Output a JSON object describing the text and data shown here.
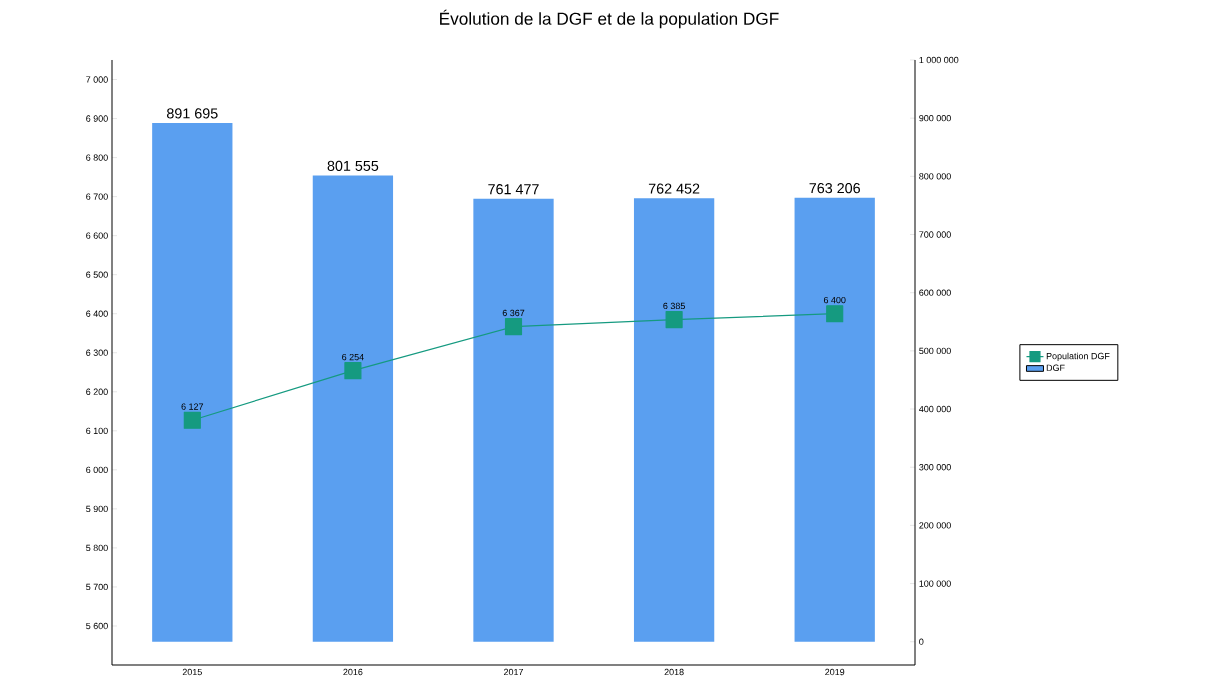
{
  "chart_data": {
    "type": "bar",
    "title": "Évolution de la DGF et de la population DGF",
    "categories": [
      "2015",
      "2016",
      "2017",
      "2018",
      "2019"
    ],
    "series": [
      {
        "name": "Population DGF",
        "type": "line",
        "axis": "y",
        "color": "#159a80",
        "values": [
          6127,
          6254,
          6367,
          6385,
          6400
        ],
        "value_labels": [
          "6 127",
          "6 254",
          "6 367",
          "6 385",
          "6 400"
        ]
      },
      {
        "name": "DGF",
        "axis": "y2",
        "color": "#5a9ff0",
        "values": [
          891695,
          801555,
          761477,
          762452,
          763206
        ],
        "value_labels": [
          "891 695",
          "801 555",
          "761 477",
          "762 452",
          "763 206"
        ]
      }
    ],
    "ylim": [
      5500,
      7050
    ],
    "yticks": [
      {
        "value": 5600,
        "label": "5 600"
      },
      {
        "value": 5700,
        "label": "5 700"
      },
      {
        "value": 5800,
        "label": "5 800"
      },
      {
        "value": 5900,
        "label": "5 900"
      },
      {
        "value": 6000,
        "label": "6 000"
      },
      {
        "value": 6100,
        "label": "6 100"
      },
      {
        "value": 6200,
        "label": "6 200"
      },
      {
        "value": 6300,
        "label": "6 300"
      },
      {
        "value": 6400,
        "label": "6 400"
      },
      {
        "value": 6500,
        "label": "6 500"
      },
      {
        "value": 6600,
        "label": "6 600"
      },
      {
        "value": 6700,
        "label": "6 700"
      },
      {
        "value": 6800,
        "label": "6 800"
      },
      {
        "value": 6900,
        "label": "6 900"
      },
      {
        "value": 7000,
        "label": "7 000"
      }
    ],
    "y2lim": [
      -40000,
      1000000
    ],
    "y2ticks": [
      0,
      {
        "value": 100000,
        "label": "100 000"
      },
      {
        "value": 200000,
        "label": "200 000"
      },
      {
        "value": 300000,
        "label": "300 000"
      },
      {
        "value": 400000,
        "label": "400 000"
      },
      {
        "value": 500000,
        "label": "500 000"
      },
      {
        "value": 600000,
        "label": "600 000"
      },
      {
        "value": 700000,
        "label": "700 000"
      },
      {
        "value": 800000,
        "label": "800 000"
      },
      {
        "value": 900000,
        "label": "900 000"
      },
      {
        "value": 1000000,
        "label": "1 000 000"
      }
    ],
    "legend": "right",
    "marker": "square",
    "grid": false
  }
}
